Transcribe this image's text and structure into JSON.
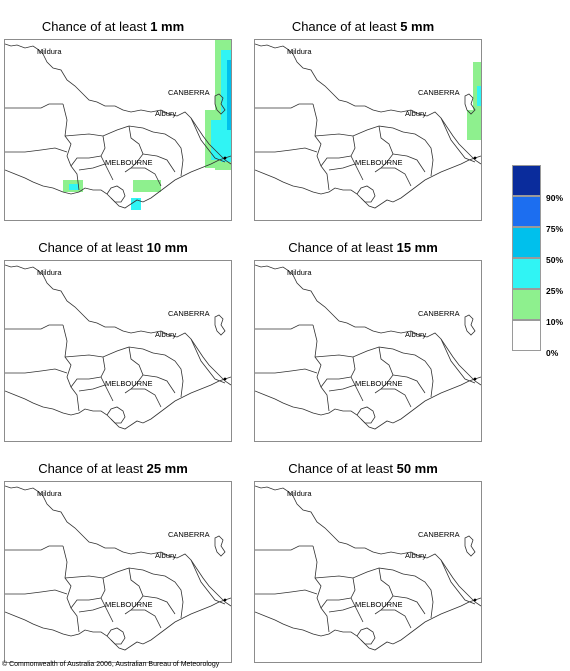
{
  "panels": [
    {
      "prefix": "Chance of at least ",
      "amount": "1 mm"
    },
    {
      "prefix": "Chance of at least ",
      "amount": "5 mm"
    },
    {
      "prefix": "Chance of at least ",
      "amount": "10 mm"
    },
    {
      "prefix": "Chance of at least ",
      "amount": "15 mm"
    },
    {
      "prefix": "Chance of at least ",
      "amount": "25 mm"
    },
    {
      "prefix": "Chance of at least ",
      "amount": "50 mm"
    }
  ],
  "cities": {
    "mildura": "Mildura",
    "canberra": "CANBERRA",
    "albury": "Albury",
    "melbourne": "MELBOURNE"
  },
  "legend": {
    "labels": [
      "90%",
      "75%",
      "50%",
      "25%",
      "10%",
      "0%"
    ],
    "colors": [
      "#0a2c9c",
      "#1c6ef0",
      "#00c0ec",
      "#30f4f4",
      "#8ef08e",
      "#ffffff"
    ]
  },
  "copyright": "© Commonwealth of Australia 2006, Australian Bureau of Meteorology"
}
